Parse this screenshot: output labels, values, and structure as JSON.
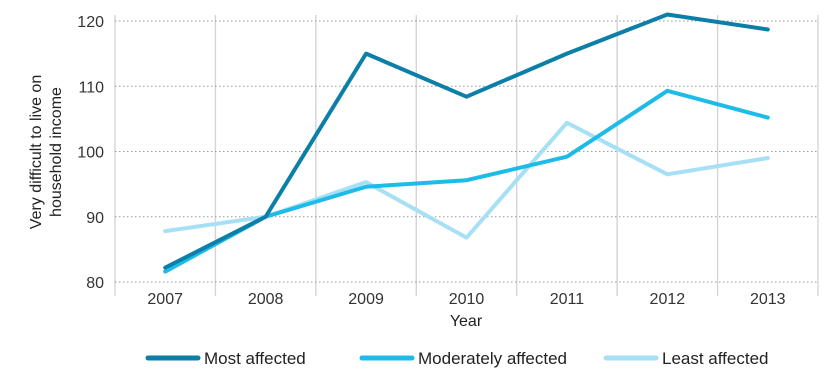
{
  "chart_data": {
    "type": "line",
    "xlabel": "Year",
    "ylabel_lines": [
      "Very difficult to live on",
      "household income"
    ],
    "categories": [
      "2007",
      "2008",
      "2009",
      "2010",
      "2011",
      "2012",
      "2013"
    ],
    "ylim": [
      80,
      120
    ],
    "yticks": [
      "80",
      "90",
      "100",
      "110",
      "120"
    ],
    "grid": "dotted horizontal, solid vertical",
    "legend_position": "bottom",
    "series": [
      {
        "name": "Most affected",
        "color": "#0c7fa8",
        "values": [
          82.2,
          90,
          115,
          108.4,
          115,
          121,
          118.7
        ]
      },
      {
        "name": "Moderately affected",
        "color": "#1cbbe8",
        "values": [
          81.6,
          90,
          94.6,
          95.6,
          99.2,
          109.3,
          105.2
        ]
      },
      {
        "name": "Least affected",
        "color": "#a7e0f5",
        "values": [
          87.8,
          90,
          95.3,
          86.8,
          104.4,
          96.5,
          99
        ]
      }
    ]
  }
}
